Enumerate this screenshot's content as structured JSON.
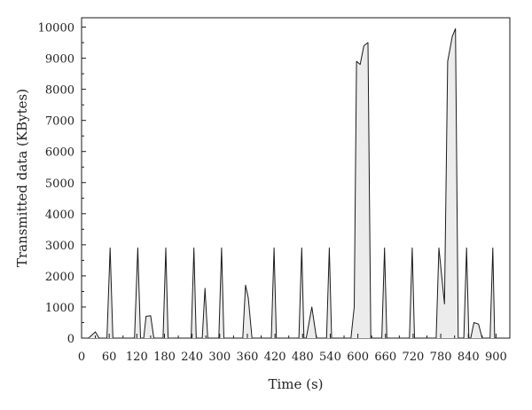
{
  "chart_data": {
    "type": "area",
    "title": "",
    "xlabel": "Time (s)",
    "ylabel": "Transmitted data (KBytes)",
    "xlim": [
      0,
      930
    ],
    "ylim": [
      0,
      10300
    ],
    "x_ticks": [
      0,
      60,
      120,
      180,
      240,
      300,
      360,
      420,
      480,
      540,
      600,
      660,
      720,
      780,
      840,
      900
    ],
    "y_ticks": [
      0,
      1000,
      2000,
      3000,
      4000,
      5000,
      6000,
      7000,
      8000,
      9000,
      10000
    ],
    "grid": false,
    "legend": "none",
    "fill_color": "#ececec",
    "line_color": "#1a1a1a",
    "series": [
      {
        "points": [
          [
            15,
            0
          ],
          [
            30,
            200
          ],
          [
            38,
            0
          ],
          [
            55,
            0
          ],
          [
            62,
            2900
          ],
          [
            68,
            0
          ],
          [
            115,
            0
          ],
          [
            122,
            2900
          ],
          [
            128,
            0
          ],
          [
            135,
            0
          ],
          [
            140,
            700
          ],
          [
            150,
            720
          ],
          [
            157,
            0
          ],
          [
            177,
            0
          ],
          [
            183,
            2900
          ],
          [
            188,
            0
          ],
          [
            238,
            0
          ],
          [
            244,
            2900
          ],
          [
            249,
            0
          ],
          [
            262,
            0
          ],
          [
            268,
            1600
          ],
          [
            274,
            0
          ],
          [
            298,
            0
          ],
          [
            304,
            2900
          ],
          [
            309,
            0
          ],
          [
            350,
            0
          ],
          [
            356,
            1700
          ],
          [
            362,
            1300
          ],
          [
            370,
            0
          ],
          [
            412,
            0
          ],
          [
            418,
            2900
          ],
          [
            423,
            0
          ],
          [
            472,
            0
          ],
          [
            478,
            2900
          ],
          [
            483,
            0
          ],
          [
            488,
            0
          ],
          [
            500,
            1000
          ],
          [
            510,
            0
          ],
          [
            532,
            0
          ],
          [
            538,
            2900
          ],
          [
            543,
            0
          ],
          [
            585,
            0
          ],
          [
            592,
            1000
          ],
          [
            597,
            8900
          ],
          [
            605,
            8800
          ],
          [
            613,
            9400
          ],
          [
            622,
            9500
          ],
          [
            628,
            0
          ],
          [
            652,
            0
          ],
          [
            658,
            2900
          ],
          [
            663,
            0
          ],
          [
            712,
            0
          ],
          [
            718,
            2900
          ],
          [
            723,
            0
          ],
          [
            770,
            0
          ],
          [
            776,
            2900
          ],
          [
            788,
            1100
          ],
          [
            795,
            8900
          ],
          [
            805,
            9700
          ],
          [
            812,
            9950
          ],
          [
            818,
            0
          ],
          [
            830,
            0
          ],
          [
            836,
            2900
          ],
          [
            841,
            0
          ],
          [
            845,
            0
          ],
          [
            852,
            500
          ],
          [
            862,
            450
          ],
          [
            870,
            0
          ],
          [
            887,
            0
          ],
          [
            893,
            2900
          ],
          [
            897,
            0
          ]
        ]
      }
    ]
  }
}
